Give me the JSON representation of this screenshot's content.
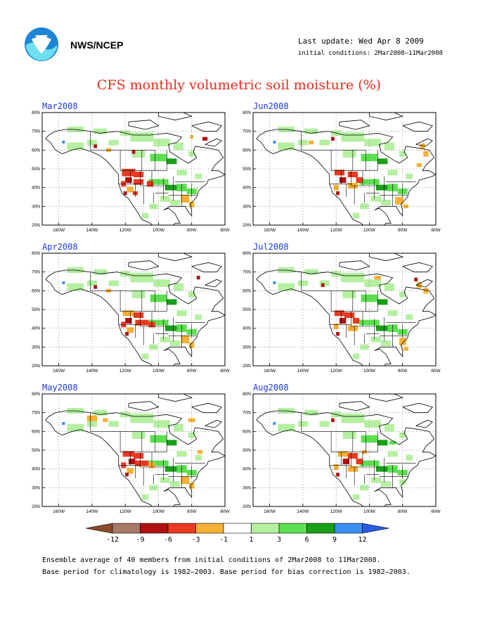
{
  "header": {
    "org": "NWS/NCEP",
    "last_update": "Last update: Wed Apr 8 2009",
    "initial_conditions": "initial conditions: 2Mar2008–11Mar2008",
    "logo_icon": "noaa-logo"
  },
  "title": "CFS monthly volumetric soil moisture (%)",
  "panels": [
    {
      "title": "Mar2008"
    },
    {
      "title": "Jun2008"
    },
    {
      "title": "Apr2008"
    },
    {
      "title": "Jul2008"
    },
    {
      "title": "May2008"
    },
    {
      "title": "Aug2008"
    }
  ],
  "axes": {
    "lat_labels": [
      "80N",
      "70N",
      "60N",
      "50N",
      "40N",
      "30N",
      "20N"
    ],
    "lon_labels": [
      "160W",
      "140W",
      "120W",
      "100W",
      "80W",
      "60W"
    ]
  },
  "legend": {
    "labels": [
      "-12",
      "-9",
      "-6",
      "-3",
      "-1",
      "1",
      "3",
      "6",
      "9",
      "12"
    ],
    "colors": [
      "#8b4a2a",
      "#a87868",
      "#b01010",
      "#e83a20",
      "#f7b034",
      "#ffffff",
      "#b4f0a0",
      "#5ce050",
      "#18a018",
      "#3a90f0",
      "#2a5ae0"
    ]
  },
  "footer": {
    "line1": "Ensemble average of 40 members from initial conditions of 2Mar2008 to 11Mar2008.",
    "line2": "Base period for climatology is 1982–2003. Base period for bias correction is 1982–2003."
  }
}
